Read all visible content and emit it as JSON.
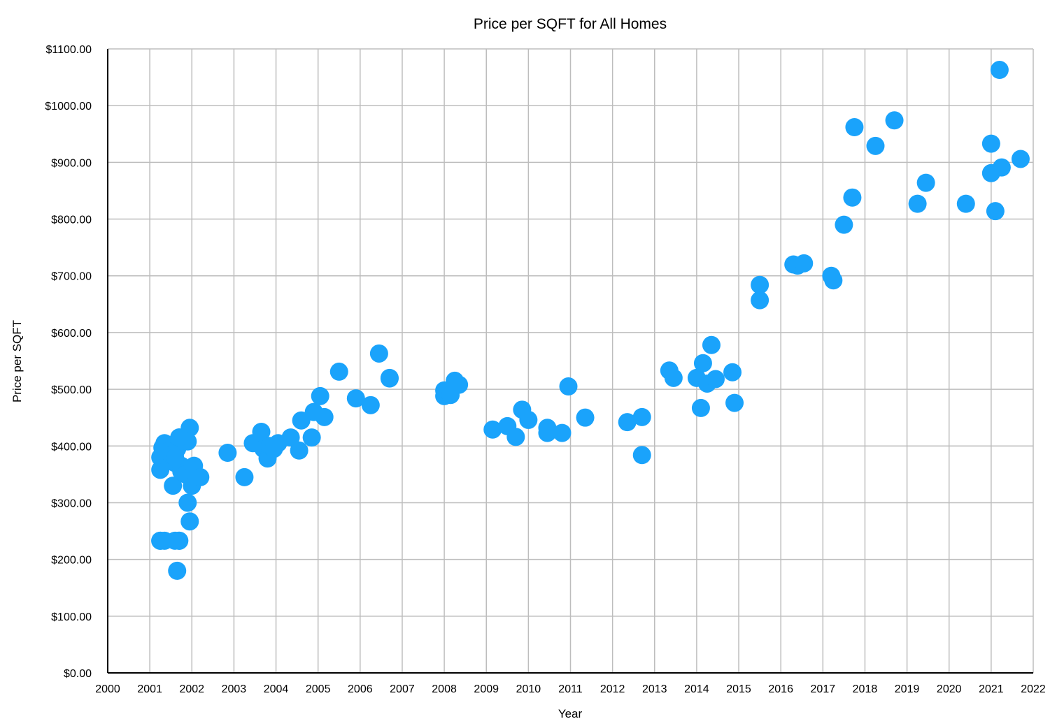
{
  "chart_data": {
    "type": "scatter",
    "title": "Price per SQFT for All Homes",
    "xlabel": "Year",
    "ylabel": "Price per SQFT",
    "xlim": [
      2000,
      2022
    ],
    "ylim": [
      0,
      1100
    ],
    "x_ticks": [
      2000,
      2001,
      2002,
      2003,
      2004,
      2005,
      2006,
      2007,
      2008,
      2009,
      2010,
      2011,
      2012,
      2013,
      2014,
      2015,
      2016,
      2017,
      2018,
      2019,
      2020,
      2021,
      2022
    ],
    "x_tick_labels": [
      "2000",
      "2001",
      "2002",
      "2003",
      "2004",
      "2005",
      "2006",
      "2007",
      "2008",
      "2009",
      "2010",
      "2011",
      "2012",
      "2013",
      "2014",
      "2015",
      "2016",
      "2017",
      "2018",
      "2019",
      "2020",
      "2021",
      "2022"
    ],
    "y_ticks": [
      0,
      100,
      200,
      300,
      400,
      500,
      600,
      700,
      800,
      900,
      1000,
      1100
    ],
    "y_tick_labels": [
      "$0.00",
      "$100.00",
      "$200.00",
      "$300.00",
      "$400.00",
      "$500.00",
      "$600.00",
      "$700.00",
      "$800.00",
      "$900.00",
      "$1000.00",
      "$1100.00"
    ],
    "grid": true,
    "legend": "none",
    "point_color": "#1AA3FB",
    "series": [
      {
        "x": [
          2001.25,
          2001.25,
          2001.25,
          2001.3,
          2001.35,
          2001.4,
          2001.45,
          2001.5,
          2001.55,
          2001.6,
          2001.6,
          2001.65,
          2001.65,
          2001.7,
          2001.7,
          2001.75,
          2001.75,
          2001.8,
          2001.85,
          2001.9,
          2001.9,
          2001.95,
          2001.95,
          2002.0,
          2002.05,
          2002.1,
          2002.2,
          2001.25,
          2001.35,
          2001.6,
          2001.7,
          2001.7,
          2002.85,
          2003.25,
          2003.45,
          2003.65,
          2003.7,
          2003.8,
          2003.85,
          2003.95,
          2004.05,
          2004.35,
          2004.55,
          2004.6,
          2004.85,
          2004.9,
          2005.05,
          2005.15,
          2005.5,
          2005.9,
          2006.25,
          2006.45,
          2006.7,
          2006.7,
          2008.0,
          2008.0,
          2008.15,
          2008.25,
          2008.35,
          2009.15,
          2009.5,
          2009.7,
          2009.85,
          2010.0,
          2010.45,
          2010.45,
          2010.8,
          2010.95,
          2011.35,
          2012.35,
          2012.7,
          2012.7,
          2013.35,
          2013.45,
          2014.0,
          2014.1,
          2014.15,
          2014.25,
          2014.35,
          2014.45,
          2014.85,
          2014.9,
          2015.5,
          2015.5,
          2016.3,
          2016.4,
          2016.55,
          2017.2,
          2017.25,
          2017.5,
          2017.7,
          2017.75,
          2018.25,
          2018.7,
          2019.25,
          2019.45,
          2020.4,
          2021.0,
          2021.0,
          2021.1,
          2021.2,
          2021.25,
          2021.7
        ],
        "y": [
          233,
          358,
          380,
          397,
          405,
          390,
          375,
          385,
          330,
          370,
          233,
          180,
          395,
          233,
          415,
          365,
          355,
          410,
          350,
          300,
          408,
          267,
          432,
          330,
          365,
          345,
          345,
          233,
          233,
          380,
          233,
          415,
          388,
          345,
          405,
          425,
          395,
          378,
          400,
          395,
          405,
          415,
          392,
          445,
          415,
          460,
          488,
          451,
          531,
          484,
          472,
          563,
          520,
          519,
          498,
          488,
          490,
          515,
          508,
          429,
          435,
          416,
          464,
          446,
          432,
          423,
          423,
          505,
          450,
          442,
          451,
          384,
          533,
          520,
          520,
          467,
          546,
          510,
          578,
          518,
          530,
          476,
          684,
          657,
          720,
          718,
          722,
          700,
          692,
          790,
          838,
          962,
          929,
          974,
          827,
          864,
          827,
          933,
          881,
          814,
          1063,
          891,
          906
        ]
      }
    ]
  }
}
